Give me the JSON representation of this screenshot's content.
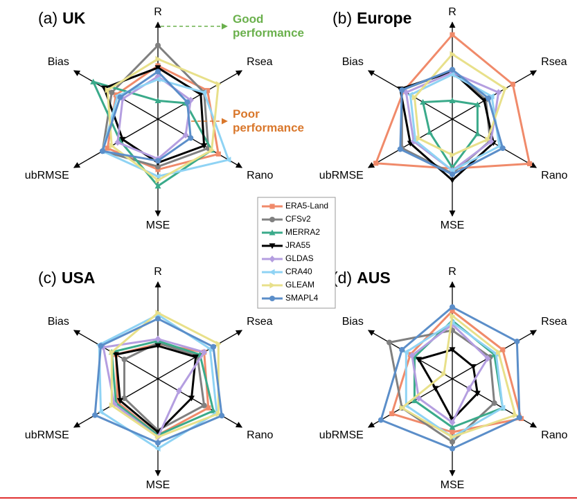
{
  "chart_data": [
    {
      "type": "radar",
      "panel": "(a)",
      "title": "UK",
      "categories": [
        "R",
        "Rsea",
        "Rano",
        "MSE",
        "ubRMSE",
        "Bias"
      ],
      "rlim": [
        0,
        1
      ],
      "annotations": [
        {
          "text": "Good performance",
          "color": "#6ab04c"
        },
        {
          "text": "Poor performance",
          "color": "#d9772b"
        }
      ],
      "series": [
        {
          "name": "ERA5-Land",
          "color": "#f08a6a",
          "marker": "square",
          "values": [
            0.55,
            0.59,
            0.72,
            0.52,
            0.6,
            0.5
          ]
        },
        {
          "name": "CFSv2",
          "color": "#808080",
          "marker": "circle",
          "values": [
            0.76,
            0.55,
            0.6,
            0.49,
            0.66,
            0.55
          ]
        },
        {
          "name": "MERRA2",
          "color": "#3aaa8a",
          "marker": "triangle",
          "values": [
            0.19,
            0.33,
            0.64,
            0.69,
            0.45,
            0.77
          ]
        },
        {
          "name": "JRA55",
          "color": "#000000",
          "marker": "triangle-down",
          "values": [
            0.53,
            0.51,
            0.55,
            0.45,
            0.42,
            0.64
          ]
        },
        {
          "name": "GLDAS",
          "color": "#b49ee0",
          "marker": "diamond",
          "values": [
            0.44,
            0.39,
            0.33,
            0.41,
            0.48,
            0.42
          ]
        },
        {
          "name": "CRA40",
          "color": "#8fd3f4",
          "marker": "triangle-left",
          "values": [
            0.41,
            0.55,
            0.84,
            0.59,
            0.66,
            0.48
          ]
        },
        {
          "name": "GLEAM",
          "color": "#e8e08a",
          "marker": "triangle-right",
          "values": [
            0.62,
            0.72,
            0.64,
            0.63,
            0.55,
            0.6
          ]
        },
        {
          "name": "SMAPL4",
          "color": "#5b8ec9",
          "marker": "circle",
          "values": [
            0.49,
            0.35,
            0.39,
            0.43,
            0.66,
            0.45
          ]
        }
      ]
    },
    {
      "type": "radar",
      "panel": "(b)",
      "title": "Europe",
      "categories": [
        "R",
        "Rsea",
        "Rano",
        "MSE",
        "ubRMSE",
        "Bias"
      ],
      "rlim": [
        0,
        1
      ],
      "series": [
        {
          "name": "ERA5-Land",
          "color": "#f08a6a",
          "marker": "square",
          "values": [
            0.87,
            0.72,
            0.92,
            0.51,
            0.91,
            0.58
          ]
        },
        {
          "name": "CFSv2",
          "color": "#808080",
          "marker": "circle",
          "values": [
            0.5,
            0.4,
            0.45,
            0.56,
            0.6,
            0.6
          ]
        },
        {
          "name": "MERRA2",
          "color": "#3aaa8a",
          "marker": "triangle",
          "values": [
            0.19,
            0.3,
            0.3,
            0.5,
            0.27,
            0.35
          ]
        },
        {
          "name": "JRA55",
          "color": "#000000",
          "marker": "triangle-down",
          "values": [
            0.49,
            0.38,
            0.49,
            0.63,
            0.5,
            0.62
          ]
        },
        {
          "name": "GLDAS",
          "color": "#b49ee0",
          "marker": "diamond",
          "values": [
            0.48,
            0.55,
            0.46,
            0.53,
            0.46,
            0.55
          ]
        },
        {
          "name": "CRA40",
          "color": "#8fd3f4",
          "marker": "triangle-left",
          "values": [
            0.46,
            0.47,
            0.56,
            0.53,
            0.44,
            0.5
          ]
        },
        {
          "name": "GLEAM",
          "color": "#e8e08a",
          "marker": "triangle-right",
          "values": [
            0.67,
            0.63,
            0.42,
            0.37,
            0.4,
            0.45
          ]
        },
        {
          "name": "SMAPL4",
          "color": "#5b8ec9",
          "marker": "circle",
          "values": [
            0.51,
            0.43,
            0.6,
            0.57,
            0.62,
            0.6
          ]
        }
      ]
    },
    {
      "type": "radar",
      "panel": "(c)",
      "title": "USA",
      "categories": [
        "R",
        "Rsea",
        "Rano",
        "MSE",
        "ubRMSE",
        "Bias"
      ],
      "rlim": [
        0,
        1
      ],
      "series": [
        {
          "name": "ERA5-Land",
          "color": "#f08a6a",
          "marker": "square",
          "values": [
            0.36,
            0.55,
            0.6,
            0.58,
            0.48,
            0.5
          ]
        },
        {
          "name": "CFSv2",
          "color": "#808080",
          "marker": "circle",
          "values": [
            0.37,
            0.47,
            0.55,
            0.53,
            0.4,
            0.4
          ]
        },
        {
          "name": "MERRA2",
          "color": "#3aaa8a",
          "marker": "triangle",
          "values": [
            0.39,
            0.5,
            0.66,
            0.58,
            0.5,
            0.55
          ]
        },
        {
          "name": "JRA55",
          "color": "#000000",
          "marker": "triangle-down",
          "values": [
            0.34,
            0.45,
            0.4,
            0.55,
            0.45,
            0.5
          ]
        },
        {
          "name": "GLDAS",
          "color": "#b49ee0",
          "marker": "diamond",
          "values": [
            0.41,
            0.55,
            0.25,
            0.6,
            0.52,
            0.65
          ]
        },
        {
          "name": "CRA40",
          "color": "#8fd3f4",
          "marker": "triangle-left",
          "values": [
            0.66,
            0.62,
            0.7,
            0.72,
            0.68,
            0.7
          ]
        },
        {
          "name": "GLEAM",
          "color": "#e8e08a",
          "marker": "triangle-right",
          "values": [
            0.68,
            0.72,
            0.72,
            0.6,
            0.55,
            0.55
          ]
        },
        {
          "name": "SMAPL4",
          "color": "#5b8ec9",
          "marker": "circle",
          "values": [
            0.62,
            0.66,
            0.76,
            0.66,
            0.75,
            0.68
          ]
        }
      ]
    },
    {
      "type": "radar",
      "panel": "(d)",
      "title": "AUS",
      "categories": [
        "R",
        "Rsea",
        "Rano",
        "MSE",
        "ubRMSE",
        "Bias"
      ],
      "rlim": [
        0,
        1
      ],
      "series": [
        {
          "name": "ERA5-Land",
          "color": "#f08a6a",
          "marker": "square",
          "values": [
            0.7,
            0.6,
            0.82,
            0.55,
            0.72,
            0.5
          ]
        },
        {
          "name": "CFSv2",
          "color": "#808080",
          "marker": "circle",
          "values": [
            0.5,
            0.45,
            0.5,
            0.65,
            0.6,
            0.75
          ]
        },
        {
          "name": "MERRA2",
          "color": "#3aaa8a",
          "marker": "triangle",
          "values": [
            0.6,
            0.5,
            0.6,
            0.5,
            0.45,
            0.45
          ]
        },
        {
          "name": "JRA55",
          "color": "#000000",
          "marker": "triangle-down",
          "values": [
            0.3,
            0.25,
            0.3,
            0.42,
            0.2,
            0.4
          ]
        },
        {
          "name": "GLDAS",
          "color": "#b49ee0",
          "marker": "diamond",
          "values": [
            0.56,
            0.42,
            0.2,
            0.45,
            0.4,
            0.48
          ]
        },
        {
          "name": "CRA40",
          "color": "#8fd3f4",
          "marker": "triangle-left",
          "values": [
            0.58,
            0.52,
            0.6,
            0.6,
            0.55,
            0.55
          ]
        },
        {
          "name": "GLEAM",
          "color": "#e8e08a",
          "marker": "triangle-right",
          "values": [
            0.65,
            0.55,
            0.75,
            0.6,
            0.6,
            0.1
          ]
        },
        {
          "name": "SMAPL4",
          "color": "#5b8ec9",
          "marker": "circle",
          "values": [
            0.74,
            0.77,
            0.8,
            0.72,
            0.85,
            0.6
          ]
        }
      ]
    }
  ]
}
